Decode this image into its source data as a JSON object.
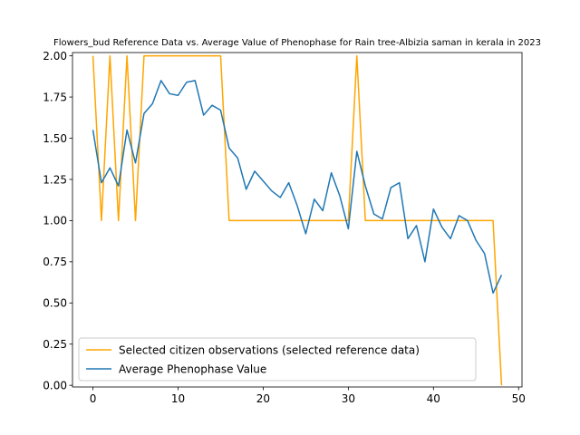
{
  "chart_data": {
    "type": "line",
    "title": "Flowers_bud Reference Data vs. Average Value of Phenophase for Rain tree-Albizia saman in kerala in 2023",
    "xlabel": "",
    "ylabel": "",
    "xlim": [
      -2.4,
      50.4
    ],
    "ylim": [
      -0.01,
      2.02
    ],
    "x_ticks": [
      0,
      10,
      20,
      30,
      40,
      50
    ],
    "y_ticks": [
      0.0,
      0.25,
      0.5,
      0.75,
      1.0,
      1.25,
      1.5,
      1.75,
      2.0
    ],
    "legend_position": "lower-left",
    "grid": false,
    "series": [
      {
        "name": "Selected citizen observations (selected reference data)",
        "color": "#FFA500",
        "x": [
          0,
          1,
          2,
          3,
          4,
          5,
          6,
          7,
          8,
          9,
          10,
          11,
          12,
          13,
          14,
          15,
          16,
          17,
          18,
          19,
          20,
          21,
          22,
          23,
          24,
          25,
          26,
          27,
          28,
          29,
          30,
          31,
          32,
          33,
          34,
          35,
          36,
          37,
          38,
          39,
          40,
          41,
          42,
          43,
          44,
          45,
          46,
          47,
          48
        ],
        "values": [
          2.0,
          1.0,
          2.0,
          1.0,
          2.0,
          1.0,
          2.0,
          2.0,
          2.0,
          2.0,
          2.0,
          2.0,
          2.0,
          2.0,
          2.0,
          2.0,
          1.0,
          1.0,
          1.0,
          1.0,
          1.0,
          1.0,
          1.0,
          1.0,
          1.0,
          1.0,
          1.0,
          1.0,
          1.0,
          1.0,
          1.0,
          2.0,
          1.0,
          1.0,
          1.0,
          1.0,
          1.0,
          1.0,
          1.0,
          1.0,
          1.0,
          1.0,
          1.0,
          1.0,
          1.0,
          1.0,
          1.0,
          1.0,
          0.0
        ]
      },
      {
        "name": "Average Phenophase Value",
        "color": "#1f77b4",
        "x": [
          0,
          1,
          2,
          3,
          4,
          5,
          6,
          7,
          8,
          9,
          10,
          11,
          12,
          13,
          14,
          15,
          16,
          17,
          18,
          19,
          20,
          21,
          22,
          23,
          24,
          25,
          26,
          27,
          28,
          29,
          30,
          31,
          32,
          33,
          34,
          35,
          36,
          37,
          38,
          39,
          40,
          41,
          42,
          43,
          44,
          45,
          46,
          47,
          48
        ],
        "values": [
          1.55,
          1.23,
          1.32,
          1.21,
          1.55,
          1.35,
          1.65,
          1.71,
          1.85,
          1.77,
          1.76,
          1.84,
          1.85,
          1.64,
          1.7,
          1.67,
          1.44,
          1.38,
          1.19,
          1.3,
          1.24,
          1.18,
          1.14,
          1.23,
          1.09,
          0.92,
          1.13,
          1.06,
          1.29,
          1.15,
          0.95,
          1.42,
          1.21,
          1.04,
          1.01,
          1.2,
          1.23,
          0.89,
          0.97,
          0.75,
          1.07,
          0.96,
          0.89,
          1.03,
          1.0,
          0.88,
          0.8,
          0.56,
          0.67
        ]
      }
    ]
  }
}
